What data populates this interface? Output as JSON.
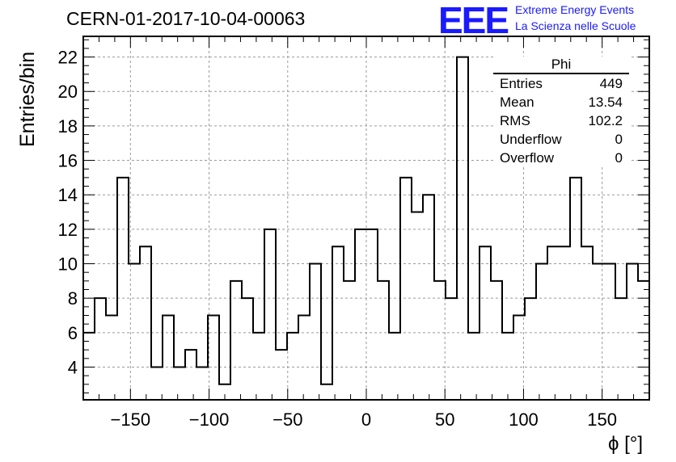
{
  "header": {
    "run_title": "CERN-01-2017-10-04-00063",
    "logo": "EEE",
    "logo_line1": "Extreme Energy Events",
    "logo_line2": "La Scienza nelle Scuole"
  },
  "stats_box": {
    "name": "Phi",
    "rows": [
      {
        "label": "Entries",
        "value": "449"
      },
      {
        "label": "Mean",
        "value": "13.54"
      },
      {
        "label": "RMS",
        "value": "102.2"
      },
      {
        "label": "Underflow",
        "value": "0"
      },
      {
        "label": "Overflow",
        "value": "0"
      }
    ]
  },
  "chart_data": {
    "type": "bar",
    "style": "step-histogram",
    "title": "CERN-01-2017-10-04-00063",
    "xlabel": "ϕ [°]",
    "ylabel": "Entries/bin",
    "bin_edges_start": -180,
    "bin_width": 7.2,
    "values": [
      6,
      8,
      7,
      15,
      10,
      11,
      4,
      7,
      4,
      5,
      4,
      7,
      3,
      9,
      8,
      6,
      12,
      5,
      6,
      7,
      10,
      3,
      11,
      9,
      12,
      12,
      9,
      6,
      15,
      13,
      14,
      9,
      8,
      22,
      6,
      11,
      9,
      6,
      7,
      8,
      10,
      11,
      11,
      15,
      11,
      10,
      10,
      8,
      10,
      9
    ],
    "xlim": [
      -180,
      180
    ],
    "ylim": [
      2.1,
      23.2
    ],
    "xticks": [
      -150,
      -100,
      -50,
      0,
      50,
      100,
      150
    ],
    "xtick_labels": [
      "−150",
      "−100",
      "−50",
      "0",
      "50",
      "100",
      "150"
    ],
    "yticks": [
      4,
      6,
      8,
      10,
      12,
      14,
      16,
      18,
      20,
      22
    ],
    "grid": true,
    "line_color": "#000000",
    "grid_color": "#9a9a9a"
  }
}
